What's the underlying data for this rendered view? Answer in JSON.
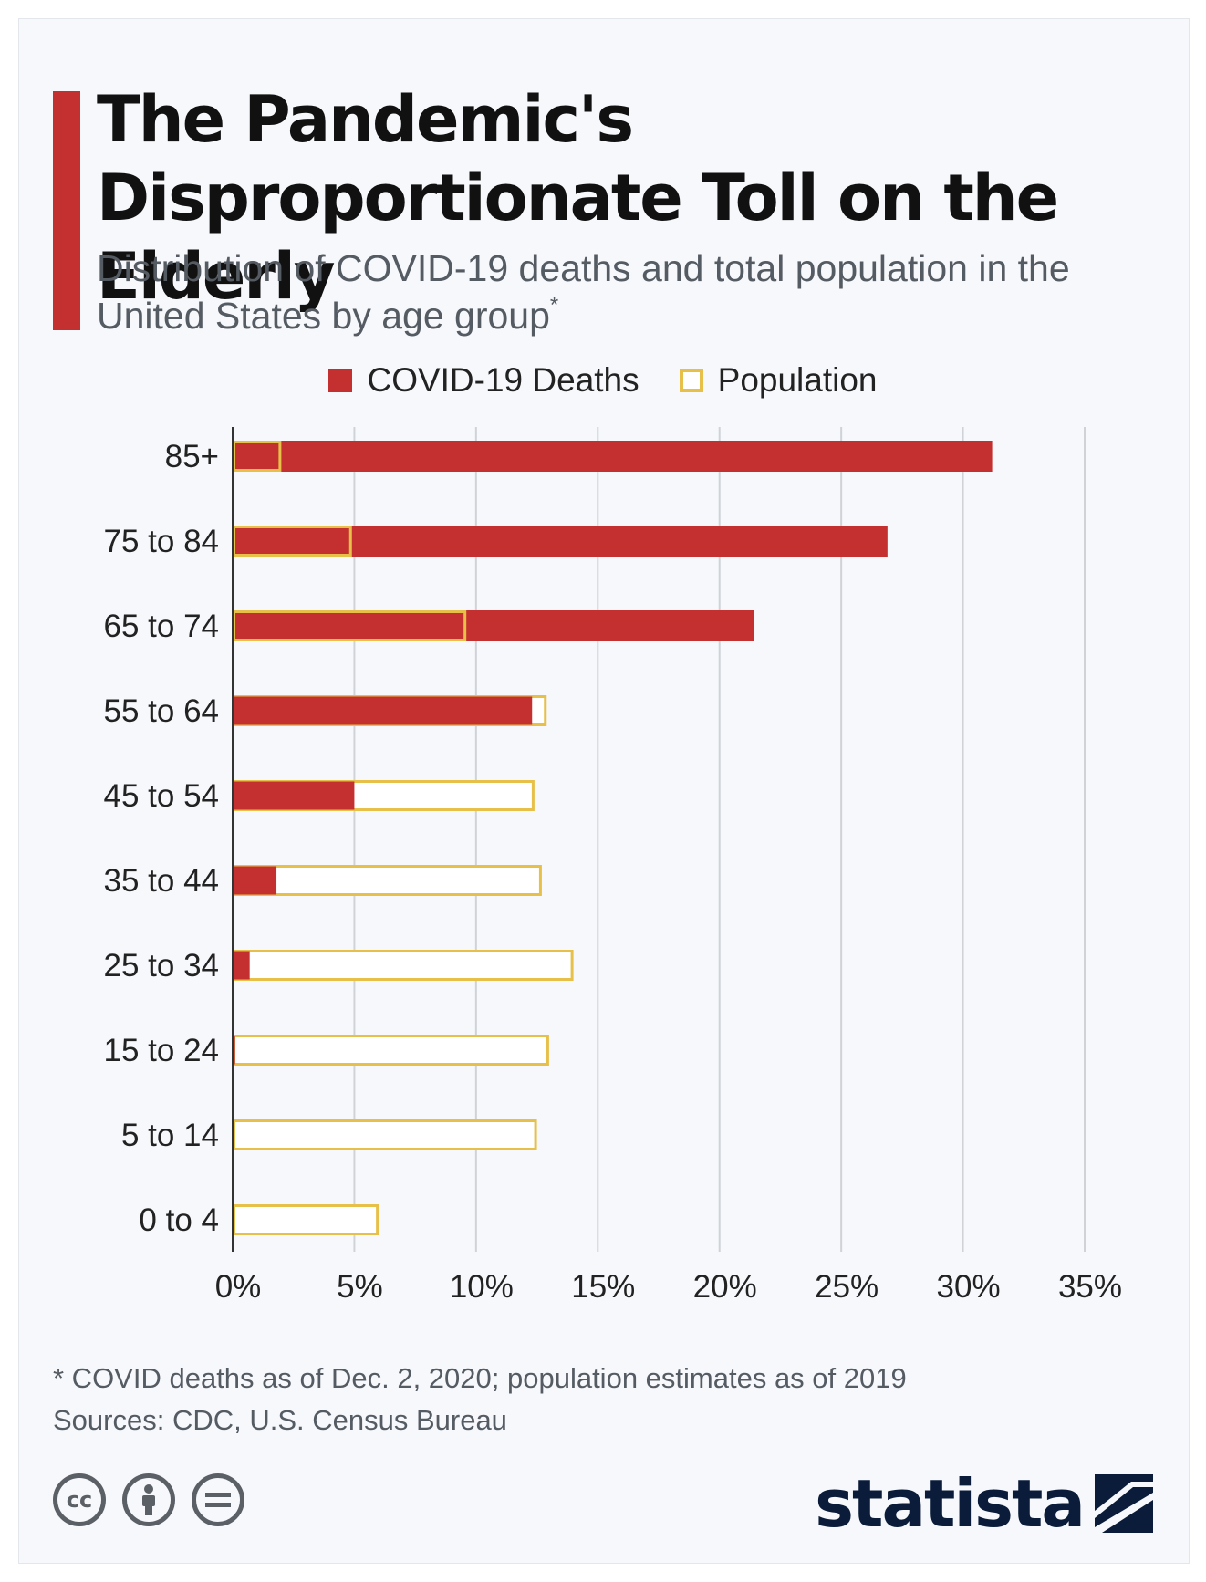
{
  "title": "The Pandemic's Disproportionate Toll on the Elderly",
  "subtitle": "Distribution of COVID-19 deaths and total population in the United States by age group",
  "subtitle_marker": "*",
  "colors": {
    "deaths": "#c43030",
    "population": "#e7c04a",
    "grid": "#cfd3d8",
    "axis": "#333333",
    "accent": "#c43030"
  },
  "legend": {
    "deaths_label": "COVID-19 Deaths",
    "population_label": "Population"
  },
  "footnote": {
    "note": "* COVID deaths as of Dec. 2, 2020; population estimates as of 2019",
    "sources": "Sources: CDC, U.S. Census Bureau"
  },
  "branding": {
    "logo_text": "statista",
    "license_icons": [
      "cc-icon",
      "by-icon",
      "nd-icon"
    ]
  },
  "chart_data": {
    "type": "bar",
    "orientation": "horizontal",
    "categories": [
      "85+",
      "75 to 84",
      "65 to 74",
      "55 to 64",
      "45 to 54",
      "35 to 44",
      "25 to 34",
      "15 to 24",
      "5 to 14",
      "0 to 4"
    ],
    "series": [
      {
        "name": "COVID-19 Deaths",
        "values": [
          31.2,
          26.9,
          21.4,
          12.3,
          5.0,
          1.8,
          0.7,
          0.1,
          0.0,
          0.0
        ]
      },
      {
        "name": "Population",
        "values": [
          2.0,
          4.9,
          9.6,
          12.9,
          12.4,
          12.7,
          14.0,
          13.0,
          12.5,
          6.0
        ]
      }
    ],
    "xlim": [
      0,
      35
    ],
    "xticks": [
      0,
      5,
      10,
      15,
      20,
      25,
      30,
      35
    ],
    "tick_labels": [
      "0%",
      "5%",
      "10%",
      "15%",
      "20%",
      "25%",
      "30%",
      "35%"
    ],
    "grid": true,
    "legend_position": "top-center"
  }
}
